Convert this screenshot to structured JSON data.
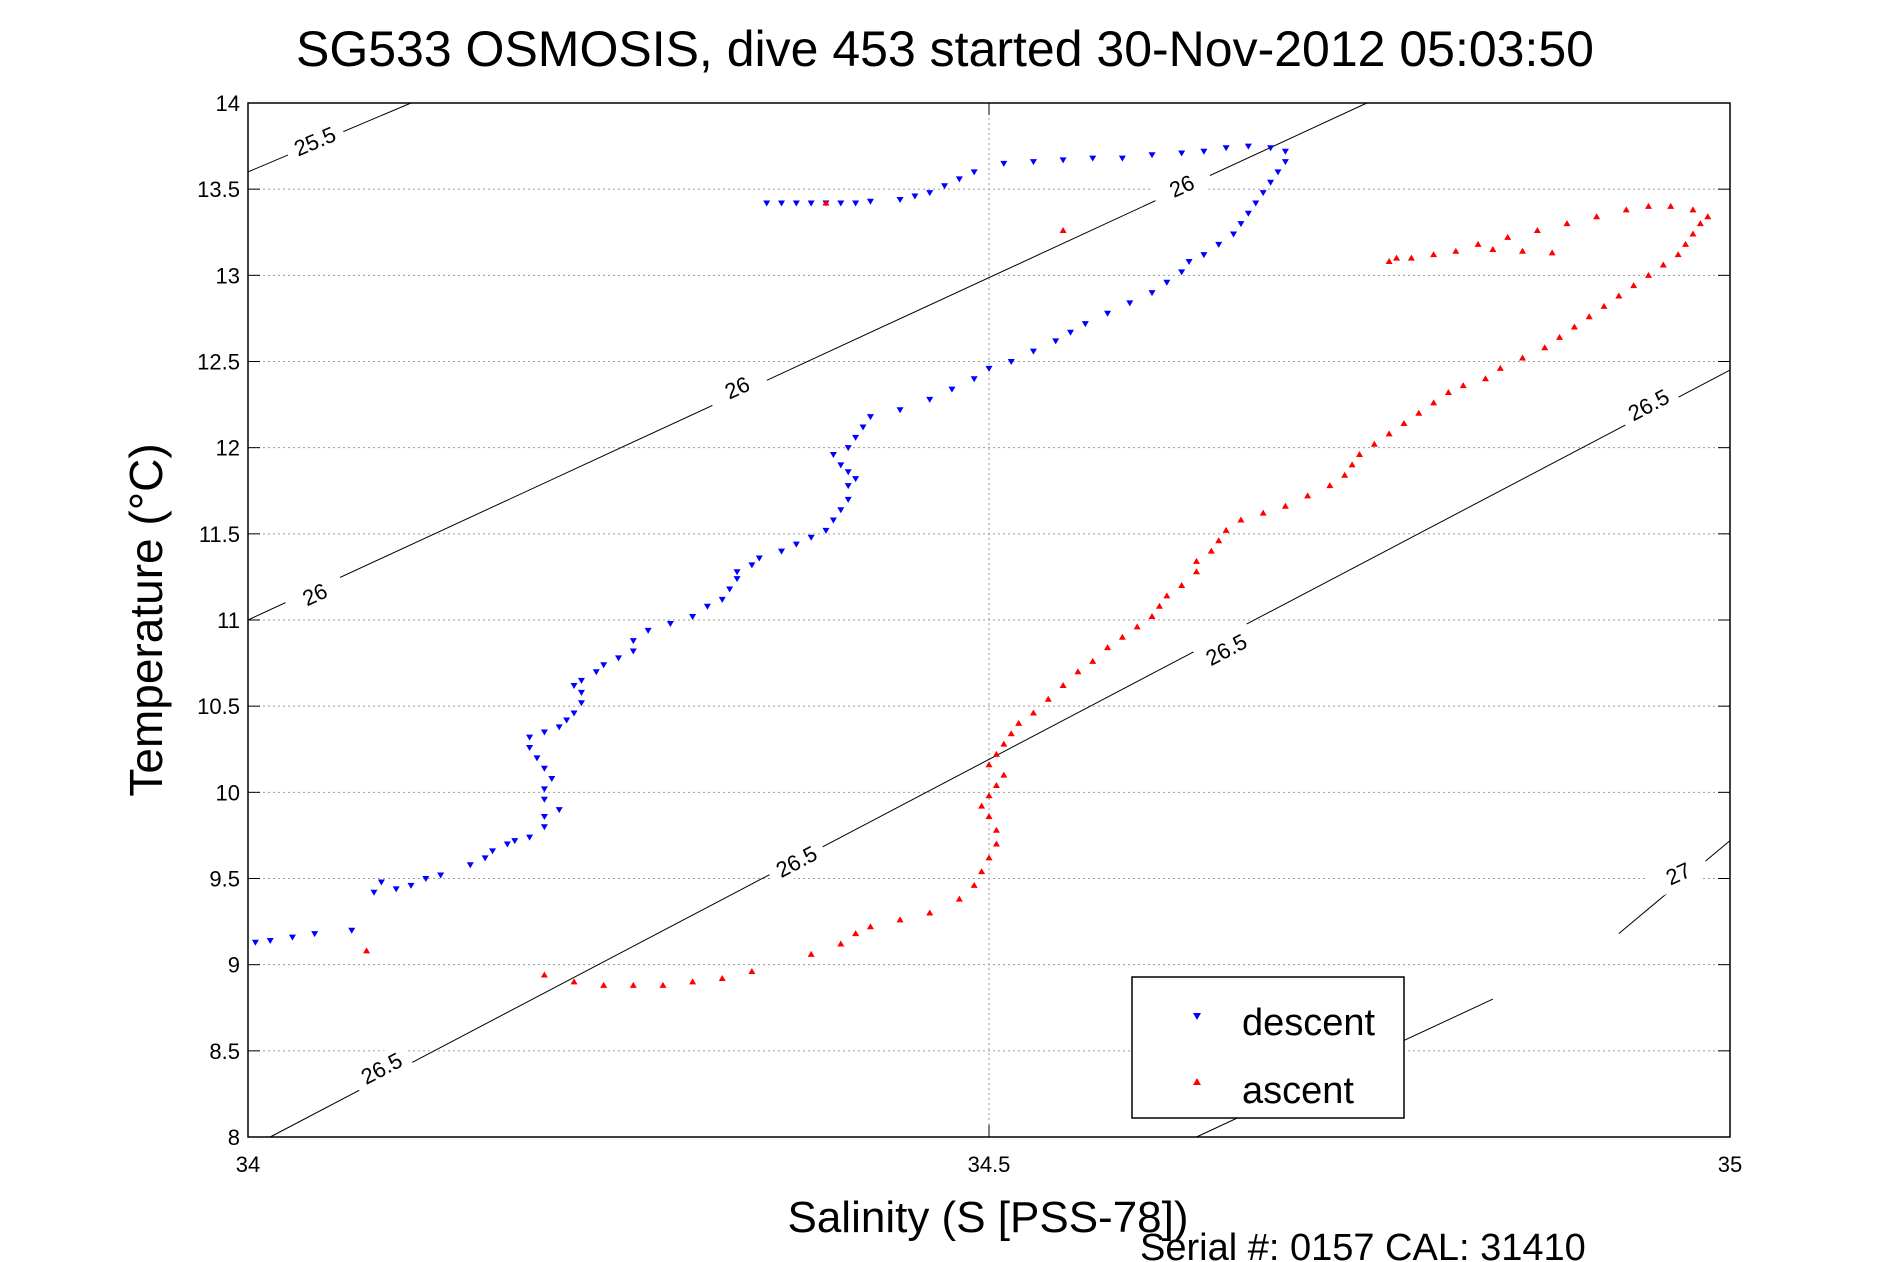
{
  "chart_data": {
    "type": "scatter",
    "title": "SG533 OSMOSIS, dive 453 started 30-Nov-2012 05:03:50",
    "xlabel": "Salinity (S [PSS-78])",
    "ylabel": "Temperature (°C)",
    "footer": "Serial #: 0157  CAL: 31410",
    "xlim": [
      34,
      35
    ],
    "ylim": [
      8,
      14
    ],
    "xticks": [
      34,
      34.5,
      35
    ],
    "xtick_labels": [
      "34",
      "34.5",
      "35"
    ],
    "yticks": [
      8,
      8.5,
      9,
      9.5,
      10,
      10.5,
      11,
      11.5,
      12,
      12.5,
      13,
      13.5,
      14
    ],
    "ytick_labels": [
      "8",
      "8.5",
      "9",
      "9.5",
      "10",
      "10.5",
      "11",
      "11.5",
      "12",
      "12.5",
      "13",
      "13.5",
      "14"
    ],
    "grid": true,
    "legend_position": "bottom-right",
    "colors": {
      "descent": "#0000ff",
      "ascent": "#ff0000",
      "contour": "#000000",
      "grid": "#9a9a9a"
    },
    "series": [
      {
        "name": "descent",
        "marker": "triangle-down",
        "points": [
          [
            34.005,
            9.13
          ],
          [
            34.015,
            9.14
          ],
          [
            34.03,
            9.16
          ],
          [
            34.045,
            9.18
          ],
          [
            34.07,
            9.2
          ],
          [
            34.085,
            9.42
          ],
          [
            34.09,
            9.48
          ],
          [
            34.1,
            9.44
          ],
          [
            34.11,
            9.46
          ],
          [
            34.12,
            9.5
          ],
          [
            34.13,
            9.52
          ],
          [
            34.15,
            9.58
          ],
          [
            34.16,
            9.62
          ],
          [
            34.165,
            9.66
          ],
          [
            34.175,
            9.7
          ],
          [
            34.18,
            9.72
          ],
          [
            34.19,
            9.74
          ],
          [
            34.2,
            9.8
          ],
          [
            34.2,
            9.86
          ],
          [
            34.21,
            9.9
          ],
          [
            34.2,
            9.96
          ],
          [
            34.2,
            10.02
          ],
          [
            34.205,
            10.08
          ],
          [
            34.2,
            10.14
          ],
          [
            34.195,
            10.2
          ],
          [
            34.19,
            10.26
          ],
          [
            34.19,
            10.32
          ],
          [
            34.2,
            10.35
          ],
          [
            34.21,
            10.38
          ],
          [
            34.215,
            10.42
          ],
          [
            34.22,
            10.46
          ],
          [
            34.225,
            10.52
          ],
          [
            34.225,
            10.58
          ],
          [
            34.22,
            10.62
          ],
          [
            34.225,
            10.65
          ],
          [
            34.235,
            10.7
          ],
          [
            34.24,
            10.74
          ],
          [
            34.25,
            10.78
          ],
          [
            34.26,
            10.82
          ],
          [
            34.26,
            10.88
          ],
          [
            34.27,
            10.94
          ],
          [
            34.285,
            10.98
          ],
          [
            34.3,
            11.02
          ],
          [
            34.31,
            11.08
          ],
          [
            34.32,
            11.12
          ],
          [
            34.325,
            11.18
          ],
          [
            34.33,
            11.24
          ],
          [
            34.33,
            11.28
          ],
          [
            34.34,
            11.32
          ],
          [
            34.345,
            11.36
          ],
          [
            34.36,
            11.4
          ],
          [
            34.37,
            11.44
          ],
          [
            34.38,
            11.48
          ],
          [
            34.39,
            11.52
          ],
          [
            34.395,
            11.58
          ],
          [
            34.4,
            11.64
          ],
          [
            34.405,
            11.7
          ],
          [
            34.405,
            11.78
          ],
          [
            34.41,
            11.82
          ],
          [
            34.405,
            11.86
          ],
          [
            34.4,
            11.9
          ],
          [
            34.395,
            11.96
          ],
          [
            34.405,
            12.0
          ],
          [
            34.41,
            12.06
          ],
          [
            34.415,
            12.12
          ],
          [
            34.42,
            12.18
          ],
          [
            34.44,
            12.22
          ],
          [
            34.46,
            12.28
          ],
          [
            34.475,
            12.34
          ],
          [
            34.49,
            12.4
          ],
          [
            34.5,
            12.46
          ],
          [
            34.515,
            12.5
          ],
          [
            34.53,
            12.56
          ],
          [
            34.545,
            12.62
          ],
          [
            34.555,
            12.67
          ],
          [
            34.565,
            12.72
          ],
          [
            34.58,
            12.78
          ],
          [
            34.595,
            12.84
          ],
          [
            34.61,
            12.9
          ],
          [
            34.62,
            12.96
          ],
          [
            34.63,
            13.02
          ],
          [
            34.635,
            13.08
          ],
          [
            34.645,
            13.12
          ],
          [
            34.655,
            13.18
          ],
          [
            34.665,
            13.24
          ],
          [
            34.67,
            13.3
          ],
          [
            34.675,
            13.36
          ],
          [
            34.68,
            13.42
          ],
          [
            34.685,
            13.48
          ],
          [
            34.69,
            13.54
          ],
          [
            34.695,
            13.6
          ],
          [
            34.7,
            13.66
          ],
          [
            34.7,
            13.72
          ],
          [
            34.69,
            13.74
          ],
          [
            34.675,
            13.75
          ],
          [
            34.66,
            13.74
          ],
          [
            34.645,
            13.72
          ],
          [
            34.63,
            13.71
          ],
          [
            34.61,
            13.7
          ],
          [
            34.59,
            13.68
          ],
          [
            34.57,
            13.68
          ],
          [
            34.55,
            13.67
          ],
          [
            34.53,
            13.66
          ],
          [
            34.51,
            13.65
          ],
          [
            34.49,
            13.6
          ],
          [
            34.48,
            13.56
          ],
          [
            34.47,
            13.52
          ],
          [
            34.46,
            13.48
          ],
          [
            34.45,
            13.46
          ],
          [
            34.44,
            13.44
          ],
          [
            34.42,
            13.43
          ],
          [
            34.41,
            13.42
          ],
          [
            34.4,
            13.42
          ],
          [
            34.39,
            13.42
          ],
          [
            34.38,
            13.42
          ],
          [
            34.37,
            13.42
          ],
          [
            34.36,
            13.42
          ],
          [
            34.35,
            13.42
          ]
        ]
      },
      {
        "name": "ascent",
        "marker": "triangle-up",
        "points": [
          [
            34.08,
            9.08
          ],
          [
            34.2,
            8.94
          ],
          [
            34.22,
            8.9
          ],
          [
            34.24,
            8.88
          ],
          [
            34.26,
            8.88
          ],
          [
            34.28,
            8.88
          ],
          [
            34.3,
            8.9
          ],
          [
            34.32,
            8.92
          ],
          [
            34.34,
            8.96
          ],
          [
            34.38,
            9.06
          ],
          [
            34.4,
            9.12
          ],
          [
            34.41,
            9.18
          ],
          [
            34.42,
            9.22
          ],
          [
            34.44,
            9.26
          ],
          [
            34.46,
            9.3
          ],
          [
            34.48,
            9.38
          ],
          [
            34.49,
            9.46
          ],
          [
            34.495,
            9.54
          ],
          [
            34.5,
            9.62
          ],
          [
            34.505,
            9.7
          ],
          [
            34.505,
            9.78
          ],
          [
            34.5,
            9.86
          ],
          [
            34.495,
            9.92
          ],
          [
            34.5,
            9.98
          ],
          [
            34.505,
            10.04
          ],
          [
            34.51,
            10.1
          ],
          [
            34.5,
            10.16
          ],
          [
            34.505,
            10.22
          ],
          [
            34.51,
            10.28
          ],
          [
            34.515,
            10.34
          ],
          [
            34.52,
            10.4
          ],
          [
            34.53,
            10.46
          ],
          [
            34.54,
            10.54
          ],
          [
            34.55,
            10.62
          ],
          [
            34.56,
            10.7
          ],
          [
            34.57,
            10.76
          ],
          [
            34.58,
            10.84
          ],
          [
            34.59,
            10.9
          ],
          [
            34.6,
            10.96
          ],
          [
            34.61,
            11.02
          ],
          [
            34.615,
            11.08
          ],
          [
            34.62,
            11.14
          ],
          [
            34.63,
            11.2
          ],
          [
            34.64,
            11.28
          ],
          [
            34.64,
            11.34
          ],
          [
            34.65,
            11.4
          ],
          [
            34.655,
            11.46
          ],
          [
            34.66,
            11.52
          ],
          [
            34.67,
            11.58
          ],
          [
            34.685,
            11.62
          ],
          [
            34.7,
            11.66
          ],
          [
            34.715,
            11.72
          ],
          [
            34.73,
            11.78
          ],
          [
            34.74,
            11.84
          ],
          [
            34.745,
            11.9
          ],
          [
            34.75,
            11.96
          ],
          [
            34.76,
            12.02
          ],
          [
            34.77,
            12.08
          ],
          [
            34.78,
            12.14
          ],
          [
            34.79,
            12.2
          ],
          [
            34.8,
            12.26
          ],
          [
            34.81,
            12.32
          ],
          [
            34.82,
            12.36
          ],
          [
            34.835,
            12.4
          ],
          [
            34.845,
            12.46
          ],
          [
            34.86,
            12.52
          ],
          [
            34.875,
            12.58
          ],
          [
            34.885,
            12.64
          ],
          [
            34.895,
            12.7
          ],
          [
            34.905,
            12.76
          ],
          [
            34.915,
            12.82
          ],
          [
            34.925,
            12.88
          ],
          [
            34.935,
            12.94
          ],
          [
            34.945,
            13.0
          ],
          [
            34.955,
            13.06
          ],
          [
            34.965,
            13.12
          ],
          [
            34.97,
            13.18
          ],
          [
            34.975,
            13.24
          ],
          [
            34.98,
            13.3
          ],
          [
            34.985,
            13.34
          ],
          [
            34.975,
            13.38
          ],
          [
            34.96,
            13.4
          ],
          [
            34.945,
            13.4
          ],
          [
            34.93,
            13.38
          ],
          [
            34.91,
            13.34
          ],
          [
            34.89,
            13.3
          ],
          [
            34.87,
            13.26
          ],
          [
            34.85,
            13.22
          ],
          [
            34.83,
            13.18
          ],
          [
            34.815,
            13.14
          ],
          [
            34.8,
            13.12
          ],
          [
            34.785,
            13.1
          ],
          [
            34.775,
            13.1
          ],
          [
            34.77,
            13.08
          ],
          [
            34.84,
            13.15
          ],
          [
            34.86,
            13.14
          ],
          [
            34.88,
            13.13
          ],
          [
            34.55,
            13.26
          ],
          [
            34.39,
            13.42
          ]
        ]
      }
    ],
    "density_contours": [
      {
        "label": "25.5",
        "label_positions": [
          [
            34.045,
            13.78
          ]
        ],
        "segments": [
          [
            [
              34.0,
              13.6
            ],
            [
              34.11,
              14.0
            ]
          ]
        ]
      },
      {
        "label": "26",
        "label_positions": [
          [
            34.045,
            11.15
          ],
          [
            34.33,
            12.35
          ],
          [
            34.63,
            13.52
          ]
        ],
        "segments": [
          [
            [
              34.0,
              11.0
            ],
            [
              34.755,
              14.0
            ]
          ]
        ]
      },
      {
        "label": "26.5",
        "label_positions": [
          [
            34.09,
            8.4
          ],
          [
            34.37,
            9.6
          ],
          [
            34.66,
            10.83
          ],
          [
            34.945,
            12.25
          ]
        ],
        "segments": [
          [
            [
              34.015,
              8.0
            ],
            [
              35.0,
              12.45
            ]
          ]
        ]
      },
      {
        "label": "27",
        "label_positions": [
          [
            34.965,
            9.53
          ]
        ],
        "segments": [
          [
            [
              34.64,
              8.0
            ],
            [
              34.84,
              8.8
            ]
          ],
          [
            [
              34.925,
              9.18
            ],
            [
              35.0,
              9.72
            ]
          ]
        ]
      }
    ]
  }
}
